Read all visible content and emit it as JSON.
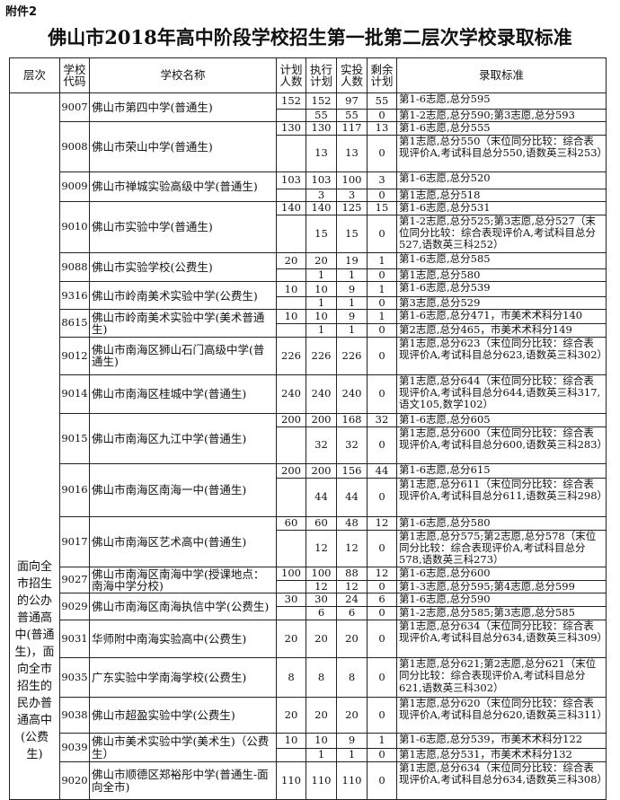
{
  "attachment": "附件2",
  "title": "佛山市2018年高中阶段学校招生第一批第二层次学校录取标准",
  "headers": {
    "layer": "层次",
    "code": "学校代码",
    "name": "学校名称",
    "plan": "计划人数",
    "exec": "执行计划",
    "actual": "实投人数",
    "remain": "剩余计划",
    "criteria": "录取标准"
  },
  "layer": "面向全市招生的公办普通高中(普通生)，面向全市招生的民办普通高中(公费生)",
  "rows": [
    {
      "code": "9007",
      "name": "佛山市第四中学(普通生)",
      "subs": [
        {
          "plan": "152",
          "exec": "152",
          "actual": "97",
          "remain": "55",
          "criteria": "第1-6志愿,总分595"
        },
        {
          "plan": "",
          "exec": "55",
          "actual": "55",
          "remain": "0",
          "criteria": "第1-2志愿,总分590;第3志愿,总分593"
        }
      ]
    },
    {
      "code": "9008",
      "name": "佛山市荣山中学(普通生)",
      "subs": [
        {
          "plan": "130",
          "exec": "130",
          "actual": "117",
          "remain": "13",
          "criteria": "第1-6志愿,总分555"
        },
        {
          "plan": "",
          "exec": "13",
          "actual": "13",
          "remain": "0",
          "criteria": "第1志愿,总分550（末位同分比较：综合表现评价A,考试科目总分550,语数英三科253）"
        }
      ]
    },
    {
      "code": "9009",
      "name": "佛山市禅城实验高级中学(普通生)",
      "subs": [
        {
          "plan": "103",
          "exec": "103",
          "actual": "100",
          "remain": "3",
          "criteria": "第1-6志愿,总分520"
        },
        {
          "plan": "",
          "exec": "3",
          "actual": "3",
          "remain": "0",
          "criteria": "第1志愿,总分518"
        }
      ]
    },
    {
      "code": "9010",
      "name": "佛山市实验中学(普通生)",
      "subs": [
        {
          "plan": "140",
          "exec": "140",
          "actual": "125",
          "remain": "15",
          "criteria": "第1-6志愿,总分531"
        },
        {
          "plan": "",
          "exec": "15",
          "actual": "15",
          "remain": "0",
          "criteria": "第1-2志愿,总分525;第3志愿,总分527（末位同分比较：综合表现评价A,考试科目总分527,语数英三科252）"
        }
      ]
    },
    {
      "code": "9088",
      "name": "佛山市实验学校(公费生)",
      "subs": [
        {
          "plan": "20",
          "exec": "20",
          "actual": "19",
          "remain": "1",
          "criteria": "第1-6志愿,总分585"
        },
        {
          "plan": "",
          "exec": "1",
          "actual": "1",
          "remain": "0",
          "criteria": "第1志愿,总分580"
        }
      ]
    },
    {
      "code": "9316",
      "name": "佛山市岭南美术实验中学(公费生)",
      "subs": [
        {
          "plan": "10",
          "exec": "10",
          "actual": "9",
          "remain": "1",
          "criteria": "第1-6志愿,总分539"
        },
        {
          "plan": "",
          "exec": "1",
          "actual": "1",
          "remain": "0",
          "criteria": "第3志愿,总分529"
        }
      ]
    },
    {
      "code": "8615",
      "name": "佛山市岭南美术实验中学(美术普通生)",
      "subs": [
        {
          "plan": "10",
          "exec": "10",
          "actual": "9",
          "remain": "1",
          "criteria": "第1-6志愿,总分471，市美术术科分140"
        },
        {
          "plan": "",
          "exec": "1",
          "actual": "1",
          "remain": "0",
          "criteria": "第2志愿,总分465，市美术术科分149"
        }
      ]
    },
    {
      "code": "9012",
      "name": "佛山市南海区狮山石门高级中学(普通生)",
      "subs": [
        {
          "plan": "226",
          "exec": "226",
          "actual": "226",
          "remain": "0",
          "criteria": "第1志愿,总分623（末位同分比较：综合表现评价A,考试科目总分623,语数英三科302）"
        }
      ]
    },
    {
      "code": "9014",
      "name": "佛山市南海区桂城中学(普通生)",
      "subs": [
        {
          "plan": "240",
          "exec": "240",
          "actual": "240",
          "remain": "0",
          "criteria": "第1志愿,总分644（末位同分比较：综合表现评价A,考试科目总分644,语数英三科317,语文105,数学102）"
        }
      ]
    },
    {
      "code": "9015",
      "name": "佛山市南海区九江中学(普通生)",
      "subs": [
        {
          "plan": "200",
          "exec": "200",
          "actual": "168",
          "remain": "32",
          "criteria": "第1-6志愿,总分605"
        },
        {
          "plan": "",
          "exec": "32",
          "actual": "32",
          "remain": "0",
          "criteria": "第1志愿,总分600（末位同分比较：综合表现评价A,考试科目总分600,语数英三科283）"
        }
      ]
    },
    {
      "code": "9016",
      "name": "佛山市南海区南海一中(普通生)",
      "subs": [
        {
          "plan": "200",
          "exec": "200",
          "actual": "156",
          "remain": "44",
          "criteria": "第1-6志愿,总分615"
        },
        {
          "plan": "",
          "exec": "44",
          "actual": "44",
          "remain": "0",
          "criteria": "第1志愿,总分611（末位同分比较：综合表现评价A,考试科目总分611,语数英三科298）"
        }
      ]
    },
    {
      "code": "9017",
      "name": "佛山市南海区艺术高中(普通生)",
      "subs": [
        {
          "plan": "60",
          "exec": "60",
          "actual": "48",
          "remain": "12",
          "criteria": "第1-6志愿,总分580"
        },
        {
          "plan": "",
          "exec": "12",
          "actual": "12",
          "remain": "0",
          "criteria": "第1志愿,总分575;第2志愿,总分578（末位同分比较：综合表现评价A,考试科目总分578,语数英三科273）"
        }
      ]
    },
    {
      "code": "9027",
      "name": "佛山市南海区南海中学(授课地点：南海中学分校)",
      "subs": [
        {
          "plan": "100",
          "exec": "100",
          "actual": "88",
          "remain": "12",
          "criteria": "第1-6志愿,总分600"
        },
        {
          "plan": "",
          "exec": "12",
          "actual": "12",
          "remain": "0",
          "criteria": "第1-3志愿,总分595;第4志愿,总分599"
        }
      ]
    },
    {
      "code": "9029",
      "name": "佛山市南海区南海执信中学(公费生)",
      "subs": [
        {
          "plan": "30",
          "exec": "30",
          "actual": "24",
          "remain": "6",
          "criteria": "第1-6志愿,总分590"
        },
        {
          "plan": "",
          "exec": "6",
          "actual": "6",
          "remain": "0",
          "criteria": "第1-2志愿,总分585;第3志愿,总分585"
        }
      ]
    },
    {
      "code": "9031",
      "name": "华师附中南海实验高中(公费生)",
      "subs": [
        {
          "plan": "20",
          "exec": "20",
          "actual": "20",
          "remain": "0",
          "criteria": "第1志愿,总分634（末位同分比较：综合表现评价A,考试科目总分634,语数英三科309）"
        }
      ]
    },
    {
      "code": "9035",
      "name": "广东实验中学南海学校(公费生)",
      "subs": [
        {
          "plan": "8",
          "exec": "8",
          "actual": "8",
          "remain": "0",
          "criteria": "第1志愿,总分621;第2志愿,总分621（末位同分比较：综合表现评价A,考试科目总分621,语数英三科302）"
        }
      ]
    },
    {
      "code": "9038",
      "name": "佛山市超盈实验中学(公费生)",
      "subs": [
        {
          "plan": "20",
          "exec": "20",
          "actual": "20",
          "remain": "0",
          "criteria": "第1志愿,总分620（末位同分比较：综合表现评价A,考试科目总分620,语数英三科311）"
        }
      ]
    },
    {
      "code": "9039",
      "name": "佛山市美术实验中学(美术生)（公费生）",
      "subs": [
        {
          "plan": "10",
          "exec": "10",
          "actual": "9",
          "remain": "1",
          "criteria": "第1-6志愿,总分539，市美术术科分122"
        },
        {
          "plan": "",
          "exec": "1",
          "actual": "1",
          "remain": "0",
          "criteria": "第1志愿,总分531，市美术术科分132"
        }
      ]
    },
    {
      "code": "9020",
      "name": "佛山市顺德区郑裕彤中学(普通生-面向全市)",
      "subs": [
        {
          "plan": "110",
          "exec": "110",
          "actual": "110",
          "remain": "0",
          "criteria": "第1志愿,总分634（末位同分比较：综合表现评价A,考试科目总分634,语数英三科308）"
        }
      ]
    }
  ]
}
